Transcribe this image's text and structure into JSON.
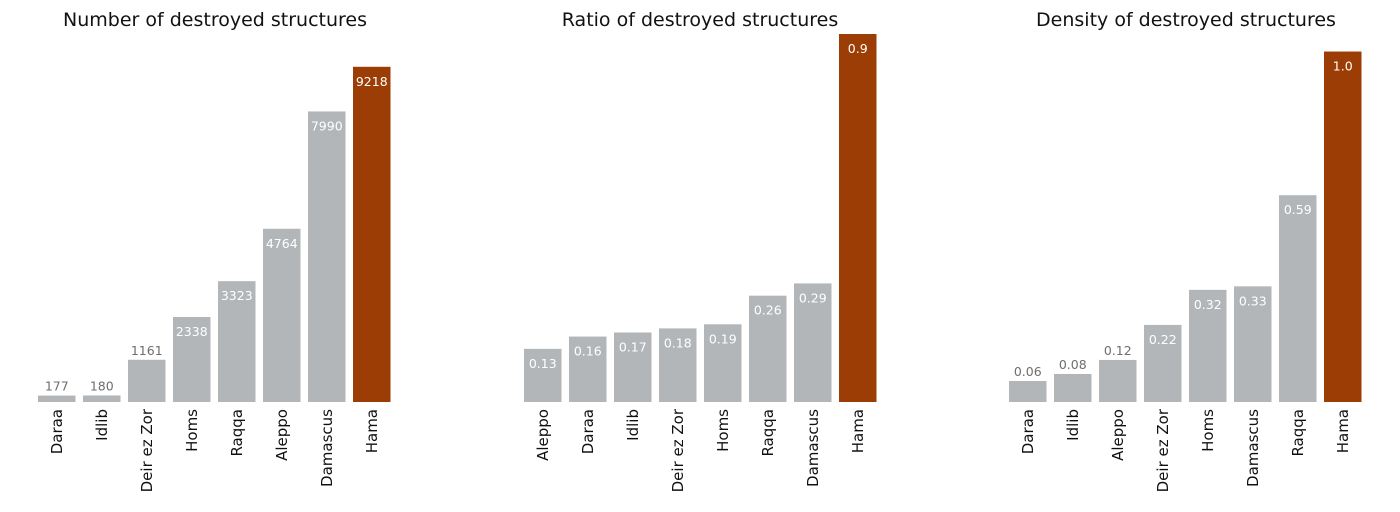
{
  "colors": {
    "bar": "#b2b6b8",
    "highlight": "#9c3d05",
    "label_inside": "#ffffff",
    "label_outside": "#6e6e6e"
  },
  "chart_data": [
    {
      "type": "bar",
      "title": "Number of destroyed structures",
      "categories": [
        "Daraa",
        "Idlib",
        "Deir ez Zor",
        "Homs",
        "Raqqa",
        "Aleppo",
        "Damascus",
        "Hama"
      ],
      "values": [
        177,
        180,
        1161,
        2338,
        3323,
        4764,
        7990,
        9218
      ],
      "labels": [
        "177",
        "180",
        "1161",
        "2338",
        "3323",
        "4764",
        "7990",
        "9218"
      ],
      "highlight": "Hama",
      "ylim": [
        0,
        10120
      ],
      "axes_visible": false,
      "grid": false
    },
    {
      "type": "bar",
      "title": "Ratio of destroyed structures",
      "categories": [
        "Aleppo",
        "Daraa",
        "Idlib",
        "Deir ez Zor",
        "Homs",
        "Raqqa",
        "Damascus",
        "Hama"
      ],
      "values": [
        0.13,
        0.16,
        0.17,
        0.18,
        0.19,
        0.26,
        0.29,
        0.9
      ],
      "labels": [
        "0.13",
        "0.16",
        "0.17",
        "0.18",
        "0.19",
        "0.26",
        "0.29",
        "0.9"
      ],
      "highlight": "Hama",
      "ylim": [
        0,
        0.9
      ],
      "axes_visible": false,
      "grid": false
    },
    {
      "type": "bar",
      "title": "Density of destroyed structures",
      "categories": [
        "Daraa",
        "Idlib",
        "Aleppo",
        "Deir ez Zor",
        "Homs",
        "Damascus",
        "Raqqa",
        "Hama"
      ],
      "values": [
        0.06,
        0.08,
        0.12,
        0.22,
        0.32,
        0.33,
        0.59,
        1.0
      ],
      "labels": [
        "0.06",
        "0.08",
        "0.12",
        "0.22",
        "0.32",
        "0.33",
        "0.59",
        "1.0"
      ],
      "highlight": "Hama",
      "ylim": [
        0,
        1.05
      ],
      "axes_visible": false,
      "grid": false
    }
  ]
}
